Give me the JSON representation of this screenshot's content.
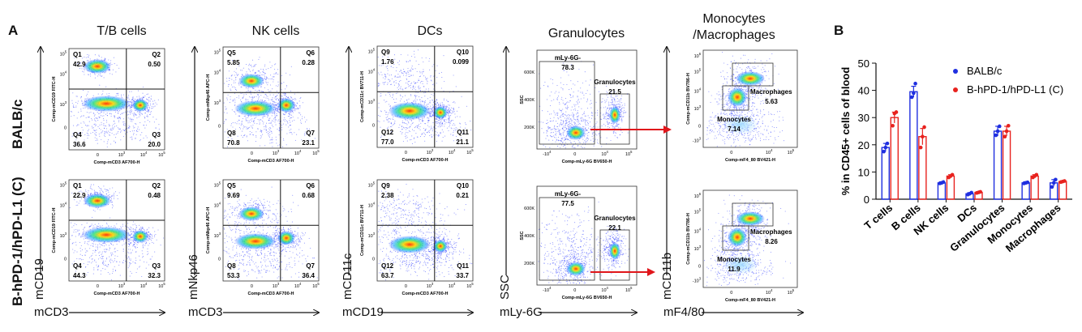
{
  "panel_letters": {
    "a": "A",
    "b": "B"
  },
  "row_labels": [
    "BALB/c",
    "B-hPD-1/hPD-L1 (C)"
  ],
  "columns": [
    {
      "title": "T/B cells",
      "x_word": "mCD3",
      "y_word": "mCD19",
      "x_small": "Comp-mCD3 AF700-H",
      "y_small": "Comp-mCD19 FITC-H"
    },
    {
      "title": "NK cells",
      "x_word": "mCD3",
      "y_word": "mNkp46",
      "x_small": "Comp-mCD3 AF700-H",
      "y_small": "Comp-mNkp46 APC-H"
    },
    {
      "title": "DCs",
      "x_word": "mCD19",
      "y_word": "mCD11c",
      "x_small": "Comp-mCD3 AF700-H",
      "y_small": "Comp-mCD11c BV711-H"
    },
    {
      "title": "Granulocytes",
      "x_word": "mLy-6G",
      "y_word": "SSC",
      "x_small": "Comp-mLy-6G BV650-H",
      "y_small": "SSC"
    },
    {
      "title": "Monocytes\n/Macrophages",
      "title_l1": "Monocytes",
      "title_l2": "/Macrophages",
      "x_word": "mF4/80",
      "y_word": "mCD11b",
      "x_small": "Comp-mF4_80 BV421-H",
      "y_small": "Comp-mCD11b BV786-H"
    }
  ],
  "quadrants": {
    "tb": [
      {
        "Q1": "42.9",
        "Q2": "0.50",
        "Q3": "20.0",
        "Q4": "36.6"
      },
      {
        "Q1": "22.9",
        "Q2": "0.48",
        "Q3": "32.3",
        "Q4": "44.3"
      }
    ],
    "nk": [
      {
        "Q5": "5.85",
        "Q6": "0.28",
        "Q7": "23.1",
        "Q8": "70.8"
      },
      {
        "Q5": "9.69",
        "Q6": "0.68",
        "Q7": "36.4",
        "Q8": "53.3"
      }
    ],
    "dc": [
      {
        "Q9": "1.76",
        "Q10": "0.099",
        "Q11": "21.1",
        "Q12": "77.0"
      },
      {
        "Q9": "2.38",
        "Q10": "0.21",
        "Q11": "33.7",
        "Q12": "63.7"
      }
    ]
  },
  "quad_names": {
    "tb": [
      "Q1",
      "Q2",
      "Q3",
      "Q4"
    ],
    "nk": [
      "Q5",
      "Q6",
      "Q7",
      "Q8"
    ],
    "dc": [
      "Q9",
      "Q10",
      "Q11",
      "Q12"
    ]
  },
  "gates": {
    "gran": [
      {
        "mly_label": "mLy-6G-",
        "mly": "78.3",
        "gran_label": "Granulocytes",
        "gran": "21.5"
      },
      {
        "mly_label": "mLy-6G-",
        "mly": "77.5",
        "gran_label": "Granulocytes",
        "gran": "22.1"
      }
    ],
    "mono": [
      {
        "mac_label": "Macrophages",
        "mac": "5.63",
        "mono_label": "Monocytes",
        "mono": "7.14"
      },
      {
        "mac_label": "Macrophages",
        "mac": "8.26",
        "mono_label": "Monocytes",
        "mono": "11.9"
      }
    ]
  },
  "tick_labels": {
    "log_x": [
      "0",
      "10^3",
      "10^4",
      "10^5"
    ],
    "log_y": [
      "10^5",
      "10^4",
      "10^3",
      "0"
    ],
    "ssc_y": [
      "600K",
      "400K",
      "200K"
    ],
    "mly_x": [
      "-10^4",
      "0",
      "10^4",
      "10^5"
    ],
    "mono_y": [
      "10^6",
      "10^5",
      "10^4",
      "10^3",
      "0",
      "-10^3"
    ],
    "mono_x": [
      "0",
      "10^4",
      "10^5"
    ]
  },
  "colors": {
    "balb": "#1f2fe0",
    "hpd": "#e8221e",
    "arrow": "#e0161b"
  },
  "chart_data": {
    "type": "bar",
    "ylabel": "% in CD45+ cells of blood",
    "ylim": [
      0,
      50
    ],
    "yticks": [
      0,
      10,
      20,
      30,
      40,
      50
    ],
    "categories": [
      "T cells",
      "B cells",
      "NK cells",
      "DCs",
      "Granulocytes",
      "Monocytes",
      "Macrophages"
    ],
    "legend_placement": "top-right",
    "series": [
      {
        "name": "BALB/c",
        "color": "#1f2fe0",
        "values": [
          19,
          39.5,
          6,
          2,
          25,
          6,
          6
        ],
        "errors": [
          1.5,
          2,
          0.4,
          0.4,
          1.8,
          0.4,
          1.2
        ],
        "points": [
          [
            17.5,
            19,
            20.5
          ],
          [
            37.5,
            39,
            42.5
          ],
          [
            5.8,
            6,
            6.3
          ],
          [
            1.7,
            2,
            2.4
          ],
          [
            23.5,
            25,
            26.8
          ],
          [
            5.8,
            6,
            6.2
          ],
          [
            4.5,
            6,
            7.2
          ]
        ]
      },
      {
        "name": "B-hPD-1/hPD-L1 (C)",
        "color": "#e8221e",
        "values": [
          30,
          23,
          8.5,
          2.5,
          25,
          8.5,
          6.5
        ],
        "errors": [
          2,
          3,
          0.5,
          0.3,
          1.8,
          0.5,
          0.3
        ],
        "points": [
          [
            27,
            31.5,
            32
          ],
          [
            19,
            23,
            26.5
          ],
          [
            8,
            8.5,
            9
          ],
          [
            2.3,
            2.5,
            2.7
          ],
          [
            23,
            25,
            27
          ],
          [
            8,
            8.5,
            9
          ],
          [
            6.3,
            6.5,
            6.7
          ]
        ]
      }
    ]
  }
}
